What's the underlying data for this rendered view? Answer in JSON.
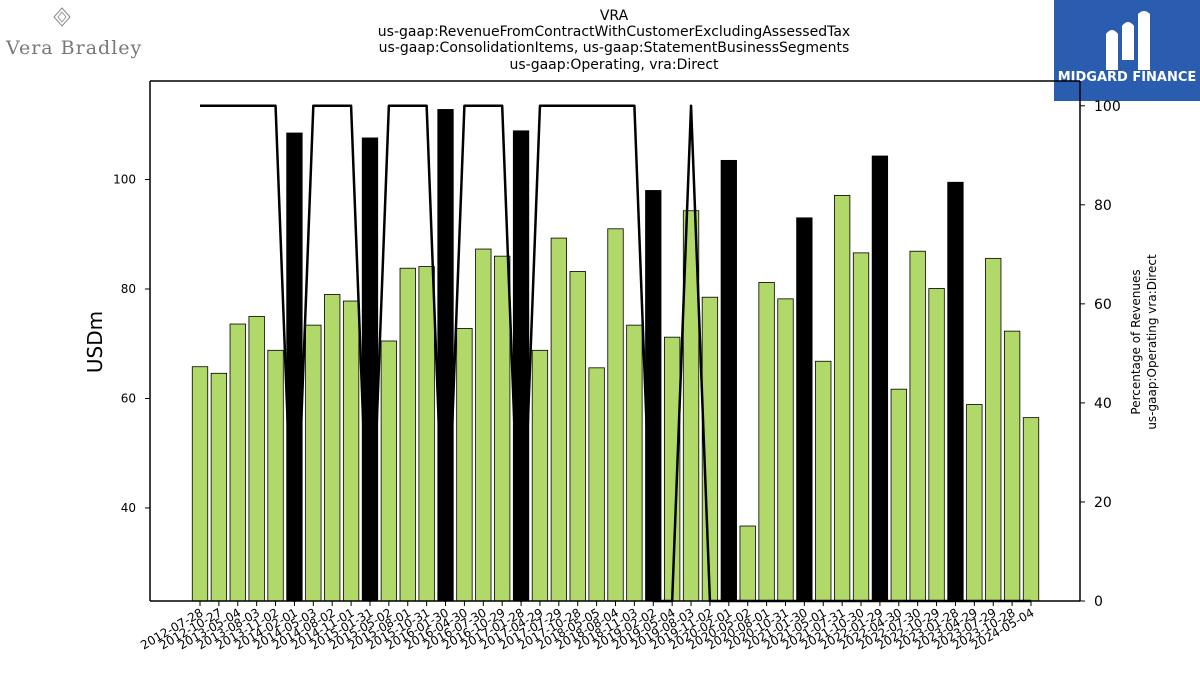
{
  "branding": {
    "left_logo_text": "Vera Bradley",
    "right_logo_text": "MIDGARD FINANCE",
    "right_logo_bg": "#2a5db0"
  },
  "colors": {
    "bar_green": "#b0d96a",
    "bar_black": "#000000",
    "line": "#000000"
  },
  "chart_data": {
    "type": "bar",
    "title": [
      "VRA",
      "us-gaap:RevenueFromContractWithCustomerExcludingAssessedTax",
      "us-gaap:ConsolidationItems, us-gaap:StatementBusinessSegments",
      "us-gaap:Operating, vra:Direct"
    ],
    "ylabel": "USDm",
    "y2label": [
      "Percentage of Revenues",
      "us-gaap:Operating vra:Direct"
    ],
    "ylim": [
      23,
      118
    ],
    "y2lim": [
      0,
      105
    ],
    "yticks": [
      40,
      60,
      80,
      100
    ],
    "y2ticks": [
      0,
      20,
      40,
      60,
      80,
      100
    ],
    "grid": false,
    "bar_count": 45,
    "bar_values": [
      65.8,
      64.6,
      73.6,
      75.0,
      68.8,
      108.5,
      73.4,
      79.0,
      77.8,
      107.6,
      70.5,
      83.8,
      84.1,
      112.8,
      72.8,
      87.3,
      86.0,
      108.9,
      68.8,
      89.3,
      83.2,
      65.6,
      91.0,
      73.4,
      98.0,
      71.2,
      94.3,
      78.5,
      103.5,
      36.7,
      81.2,
      78.2,
      93.0,
      66.8,
      97.1,
      86.6,
      104.3,
      61.7,
      86.9,
      80.1,
      99.5,
      58.9,
      85.6,
      72.3,
      56.5
    ],
    "bar_highlight": [
      false,
      false,
      false,
      false,
      false,
      true,
      false,
      false,
      false,
      true,
      false,
      false,
      false,
      true,
      false,
      false,
      false,
      true,
      false,
      false,
      false,
      false,
      false,
      false,
      true,
      false,
      false,
      false,
      true,
      false,
      false,
      false,
      true,
      false,
      false,
      false,
      true,
      false,
      false,
      false,
      true,
      false,
      false,
      false,
      false
    ],
    "line_series": {
      "values": [
        100,
        100,
        100,
        100,
        100,
        0,
        100,
        100,
        100,
        0,
        100,
        100,
        100,
        0,
        100,
        100,
        100,
        0,
        100,
        100,
        100,
        100,
        100,
        100,
        0,
        0,
        100,
        0,
        0,
        0,
        0,
        0,
        0,
        0,
        0,
        0,
        0,
        0,
        0,
        0,
        0,
        0,
        0,
        0,
        0
      ]
    },
    "x_tick_labels": [
      "2012-07-28",
      "2012-10-27",
      "2013-05-04",
      "2013-08-03",
      "2013-11-02",
      "2014-02-01",
      "2014-05-03",
      "2014-08-02",
      "2014-11-01",
      "2015-01-31",
      "2015-05-02",
      "2015-08-01",
      "2015-10-31",
      "2016-01-30",
      "2016-04-30",
      "2016-07-30",
      "2016-10-29",
      "2017-01-28",
      "2017-04-29",
      "2017-07-29",
      "2017-10-28",
      "2018-05-05",
      "2018-08-04",
      "2018-11-03",
      "2019-02-02",
      "2019-05-04",
      "2019-08-03",
      "2019-11-02",
      "2020-02-01",
      "2020-05-02",
      "2020-08-01",
      "2020-10-31",
      "2021-01-30",
      "2021-05-01",
      "2021-07-31",
      "2021-10-30",
      "2022-01-29",
      "2022-04-30",
      "2022-07-30",
      "2022-10-29",
      "2023-01-28",
      "2023-04-29",
      "2023-07-29",
      "2023-10-28",
      "2024-05-04"
    ]
  }
}
